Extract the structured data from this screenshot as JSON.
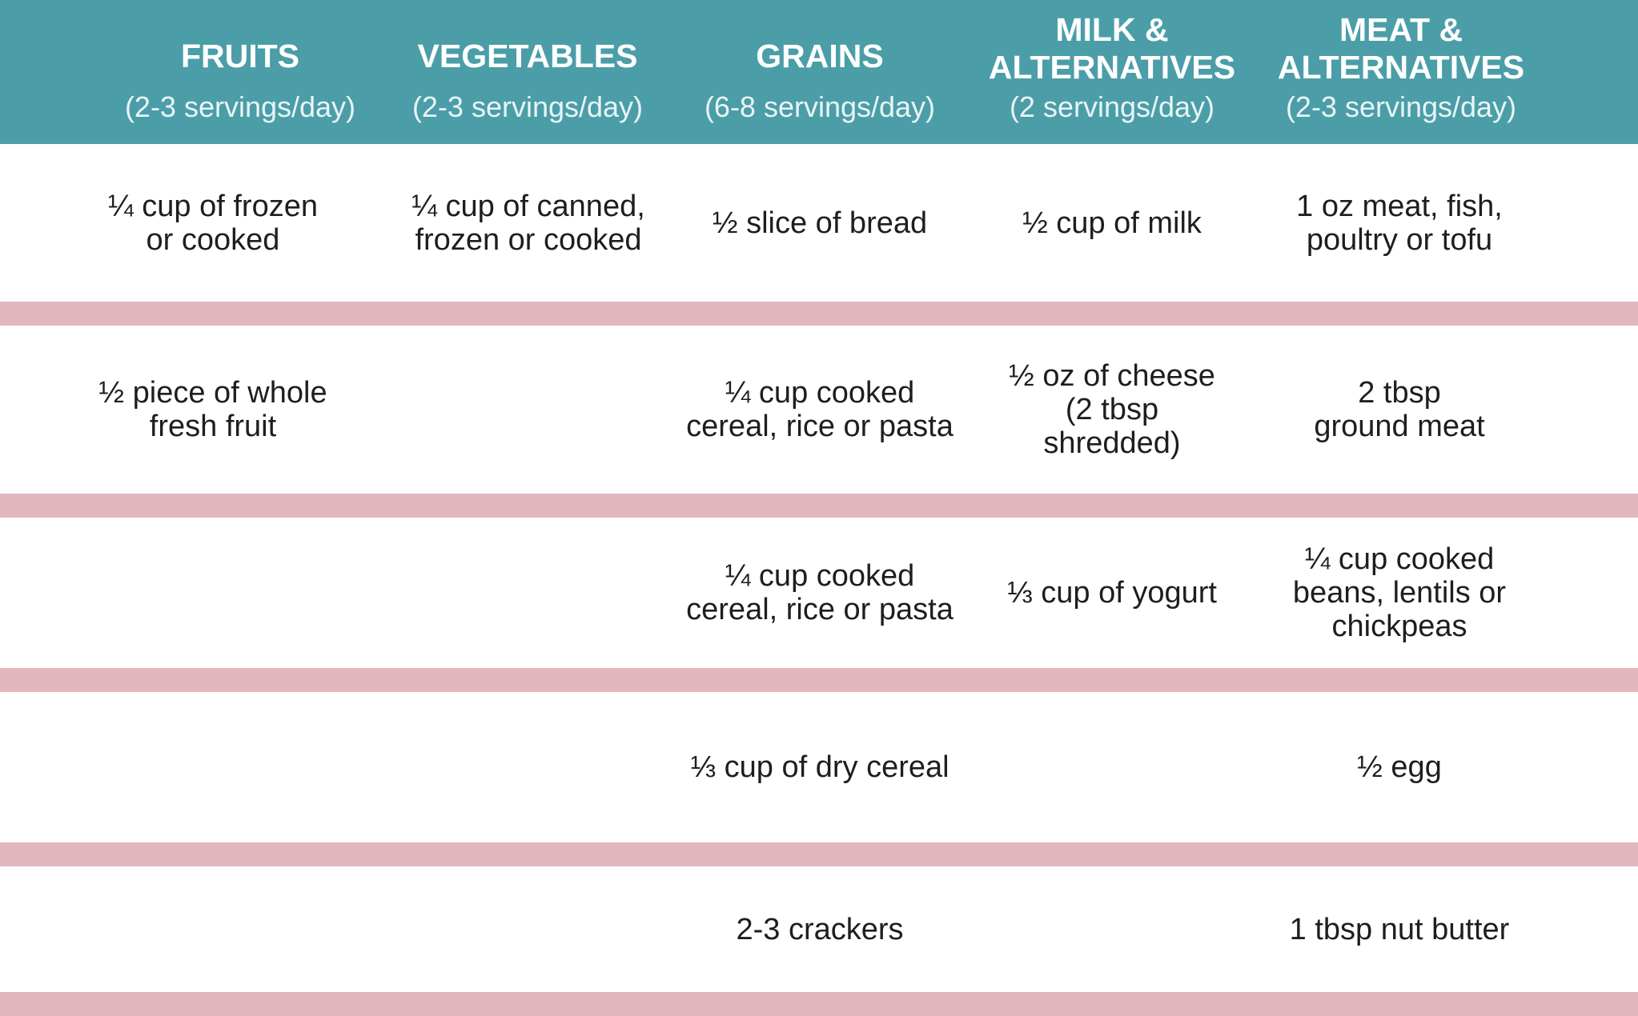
{
  "columns": [
    {
      "title": "FRUITS",
      "servings": "(2-3 servings/day)"
    },
    {
      "title": "VEGETABLES",
      "servings": "(2-3 servings/day)"
    },
    {
      "title": "GRAINS",
      "servings": "(6-8 servings/day)"
    },
    {
      "title": "MILK &\nALTERNATIVES",
      "servings": "(2 servings/day)"
    },
    {
      "title": "MEAT &\nALTERNATIVES",
      "servings": "(2-3 servings/day)"
    }
  ],
  "rows": [
    [
      "¼ cup of frozen\nor cooked",
      "¼ cup of canned,\nfrozen or cooked",
      "½ slice of bread",
      "½ cup of milk",
      "1 oz meat, fish,\npoultry or tofu"
    ],
    [
      "½ piece of whole\nfresh fruit",
      "",
      "¼ cup cooked\ncereal, rice or pasta",
      "½ oz of cheese\n(2 tbsp\nshredded)",
      "2 tbsp\nground meat"
    ],
    [
      "",
      "",
      "¼ cup cooked\ncereal, rice or pasta",
      "⅓ cup of yogurt",
      "¼ cup cooked\nbeans, lentils or\nchickpeas"
    ],
    [
      "",
      "",
      "⅓ cup of dry cereal",
      "",
      "½ egg"
    ],
    [
      "",
      "",
      "2-3 crackers",
      "",
      "1 tbsp nut butter"
    ]
  ],
  "colors": {
    "header_bg": "#4b9ea8",
    "separator": "#e1b6bd",
    "header_text": "#ffffff"
  }
}
